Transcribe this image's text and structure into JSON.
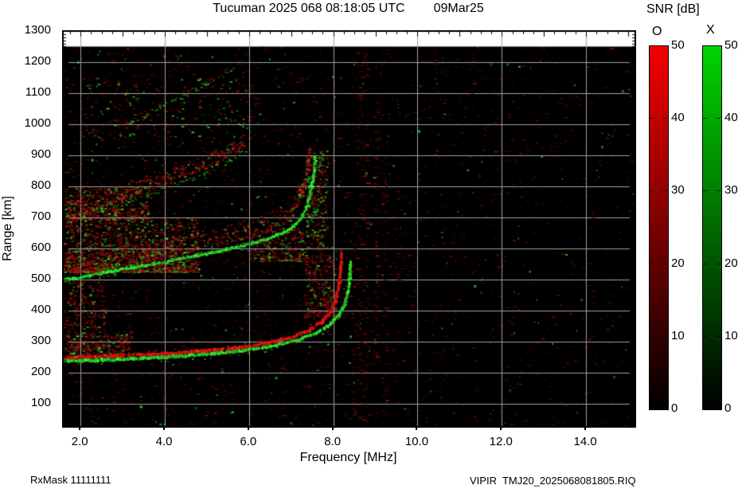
{
  "header": {
    "title_left": "Tucuman 2025 068 08:18:05 UTC",
    "title_right": "09Mar25"
  },
  "footer": {
    "rx_mask": "RxMask 11111111",
    "file_label": "VIPIR  TMJ20_2025068081805.RIQ"
  },
  "legend": {
    "title": "SNR [dB]",
    "bars": [
      {
        "label": "O",
        "color_top": "#f40000",
        "color_bottom": "#000000",
        "ticks": [
          {
            "v": 50,
            "label": "50"
          },
          {
            "v": 40,
            "label": "40"
          },
          {
            "v": 30,
            "label": "30"
          },
          {
            "v": 20,
            "label": "20"
          },
          {
            "v": 10,
            "label": "10"
          },
          {
            "v": 0,
            "label": "0"
          }
        ]
      },
      {
        "label": "X",
        "color_top": "#00d400",
        "color_bottom": "#000000",
        "ticks": [
          {
            "v": 50,
            "label": "50"
          },
          {
            "v": 40,
            "label": "40"
          },
          {
            "v": 30,
            "label": "30"
          },
          {
            "v": 20,
            "label": "20"
          },
          {
            "v": 10,
            "label": "10"
          },
          {
            "v": 0,
            "label": "0"
          }
        ]
      }
    ],
    "vmin": 0,
    "vmax": 50
  },
  "chart_data": {
    "type": "heatmap",
    "title": "Tucuman 2025 068 08:18:05 UTC 09Mar25",
    "xlabel": "Frequency [MHz]",
    "ylabel": "Range [km]",
    "xlim": [
      1.58,
      15.17
    ],
    "ylim": [
      25,
      1300
    ],
    "data_max_range": 1250,
    "grid": true,
    "grid_color": "#a0a0a0",
    "xticks": [
      {
        "v": 2,
        "label": "2.0"
      },
      {
        "v": 4,
        "label": "4.0"
      },
      {
        "v": 6,
        "label": "6.0"
      },
      {
        "v": 8,
        "label": "8.0"
      },
      {
        "v": 10,
        "label": "10.0"
      },
      {
        "v": 12,
        "label": "12.0"
      },
      {
        "v": 14,
        "label": "14.0"
      }
    ],
    "yticks": [
      {
        "v": 100,
        "label": "100"
      },
      {
        "v": 200,
        "label": "200"
      },
      {
        "v": 300,
        "label": "300"
      },
      {
        "v": 400,
        "label": "400"
      },
      {
        "v": 500,
        "label": "500"
      },
      {
        "v": 600,
        "label": "600"
      },
      {
        "v": 700,
        "label": "700"
      },
      {
        "v": 800,
        "label": "800"
      },
      {
        "v": 900,
        "label": "900"
      },
      {
        "v": 1000,
        "label": "1000"
      },
      {
        "v": 1100,
        "label": "1100"
      },
      {
        "v": 1200,
        "label": "1200"
      },
      {
        "v": 1300,
        "label": "1300"
      }
    ],
    "o_mode_color": "#cc1410",
    "x_mode_color": "#2ecc2e",
    "background": "#000000",
    "traces": [
      {
        "name": "F2 2-hop O-mode spread",
        "mode": "O",
        "style": "fuzzy",
        "width": 11,
        "points": [
          [
            1.58,
            520
          ],
          [
            2.4,
            542
          ],
          [
            3.2,
            562
          ],
          [
            4.0,
            582
          ],
          [
            4.8,
            604
          ],
          [
            5.6,
            628
          ],
          [
            6.2,
            650
          ],
          [
            6.6,
            672
          ],
          [
            6.9,
            695
          ],
          [
            7.1,
            725
          ],
          [
            7.25,
            775
          ],
          [
            7.35,
            835
          ],
          [
            7.42,
            890
          ]
        ]
      },
      {
        "name": "F2 2-hop X-mode",
        "mode": "X",
        "style": "band",
        "width": 3,
        "points": [
          [
            1.58,
            498
          ],
          [
            2.4,
            518
          ],
          [
            3.2,
            538
          ],
          [
            4.0,
            557
          ],
          [
            4.8,
            578
          ],
          [
            5.6,
            601
          ],
          [
            6.2,
            622
          ],
          [
            6.7,
            645
          ],
          [
            7.0,
            668
          ],
          [
            7.2,
            695
          ],
          [
            7.35,
            735
          ],
          [
            7.45,
            790
          ],
          [
            7.52,
            850
          ],
          [
            7.55,
            900
          ]
        ]
      },
      {
        "name": "F2 3-hop O-mode spread",
        "mode": "O",
        "style": "fuzzy",
        "width": 9,
        "points": [
          [
            1.7,
            702
          ],
          [
            2.3,
            732
          ],
          [
            3.0,
            768
          ],
          [
            3.7,
            800
          ],
          [
            4.4,
            836
          ],
          [
            5.0,
            868
          ],
          [
            5.5,
            900
          ],
          [
            5.9,
            932
          ]
        ]
      },
      {
        "name": "F2 3-hop X-mode",
        "mode": "X",
        "style": "specks",
        "width": 4,
        "points": [
          [
            1.7,
            690
          ],
          [
            2.5,
            728
          ],
          [
            3.3,
            764
          ],
          [
            4.1,
            800
          ],
          [
            4.9,
            844
          ],
          [
            5.6,
            890
          ],
          [
            5.95,
            920
          ]
        ]
      },
      {
        "name": "F2 4-hop O-mode",
        "mode": "O",
        "style": "specks",
        "width": 4,
        "points": [
          [
            2.9,
            1000
          ],
          [
            3.6,
            1045
          ],
          [
            4.3,
            1090
          ],
          [
            5.0,
            1140
          ],
          [
            5.6,
            1185
          ],
          [
            5.95,
            1225
          ]
        ]
      },
      {
        "name": "F2 4-hop X-mode",
        "mode": "X",
        "style": "specks",
        "width": 4,
        "points": [
          [
            3.1,
            1005
          ],
          [
            3.8,
            1052
          ],
          [
            4.5,
            1098
          ],
          [
            5.2,
            1148
          ],
          [
            5.8,
            1195
          ]
        ]
      },
      {
        "name": "F2 1-hop O-mode",
        "mode": "O",
        "style": "band",
        "width": 4,
        "points": [
          [
            1.58,
            247
          ],
          [
            2.2,
            250
          ],
          [
            3.0,
            254
          ],
          [
            3.8,
            259
          ],
          [
            4.6,
            266
          ],
          [
            5.4,
            275
          ],
          [
            6.0,
            285
          ],
          [
            6.5,
            297
          ],
          [
            7.0,
            314
          ],
          [
            7.4,
            336
          ],
          [
            7.7,
            362
          ],
          [
            7.9,
            392
          ],
          [
            8.02,
            430
          ],
          [
            8.1,
            475
          ],
          [
            8.15,
            530
          ],
          [
            8.17,
            590
          ]
        ]
      },
      {
        "name": "F2 1-hop X-mode",
        "mode": "X",
        "style": "band",
        "width": 3.5,
        "points": [
          [
            1.58,
            236
          ],
          [
            2.2,
            239
          ],
          [
            3.0,
            243
          ],
          [
            3.8,
            248
          ],
          [
            4.6,
            255
          ],
          [
            5.4,
            264
          ],
          [
            6.0,
            274
          ],
          [
            6.6,
            287
          ],
          [
            7.1,
            303
          ],
          [
            7.5,
            323
          ],
          [
            7.85,
            350
          ],
          [
            8.1,
            385
          ],
          [
            8.25,
            420
          ],
          [
            8.33,
            465
          ],
          [
            8.37,
            520
          ],
          [
            8.39,
            560
          ]
        ]
      }
    ],
    "diffuse_regions": [
      {
        "f": [
          1.58,
          4.8
        ],
        "r": [
          525,
          700
        ],
        "n": 2200,
        "green": 0.14,
        "bias": 1.9
      },
      {
        "f": [
          1.58,
          3.2
        ],
        "r": [
          250,
          335
        ],
        "n": 500,
        "green": 0.1,
        "bias": 1.4
      },
      {
        "f": [
          1.58,
          3.6
        ],
        "r": [
          695,
          800
        ],
        "n": 700,
        "green": 0.12,
        "bias": 1.6
      },
      {
        "f": [
          6.0,
          7.35
        ],
        "r": [
          560,
          665
        ],
        "n": 420,
        "green": 0.1,
        "bias": 1.5
      },
      {
        "f": [
          7.3,
          8.05
        ],
        "r": [
          380,
          580
        ],
        "n": 420,
        "green": 0.08,
        "bias": 1.2
      },
      {
        "f": [
          7.35,
          7.85
        ],
        "r": [
          600,
          920
        ],
        "n": 350,
        "green": 0.3,
        "bias": 1.0
      },
      {
        "f": [
          2.0,
          6.2
        ],
        "r": [
          950,
          1150
        ],
        "n": 260,
        "green": 0.25,
        "bias": 1.0
      },
      {
        "f": [
          1.58,
          2.6
        ],
        "r": [
          340,
          500
        ],
        "n": 300,
        "green": 0.1,
        "bias": 1.0
      }
    ],
    "noise_streaks": [
      {
        "f": 7.65,
        "r0": 560,
        "r1": 900,
        "i": 0.8
      },
      {
        "f": 7.82,
        "r0": 300,
        "r1": 560,
        "i": 0.5
      },
      {
        "f": 8.45,
        "r0": 40,
        "r1": 600,
        "i": 0.5
      },
      {
        "f": 8.6,
        "r0": 100,
        "r1": 1200,
        "i": 0.6
      },
      {
        "f": 8.75,
        "r0": 40,
        "r1": 1240,
        "i": 0.5
      },
      {
        "f": 9.0,
        "r0": 200,
        "r1": 1100,
        "i": 0.5
      },
      {
        "f": 9.2,
        "r0": 60,
        "r1": 900,
        "i": 0.4
      },
      {
        "f": 9.5,
        "r0": 400,
        "r1": 800,
        "i": 0.3
      },
      {
        "f": 10.4,
        "r0": 900,
        "r1": 1240,
        "i": 0.3
      },
      {
        "f": 11.3,
        "r0": 1000,
        "r1": 1240,
        "i": 0.25
      },
      {
        "f": 13.8,
        "r0": 1050,
        "r1": 1245,
        "i": 0.3
      },
      {
        "f": 14.1,
        "r0": 300,
        "r1": 700,
        "i": 0.2
      }
    ],
    "background_noise": {
      "red_count": 6500,
      "green_count": 700
    }
  }
}
